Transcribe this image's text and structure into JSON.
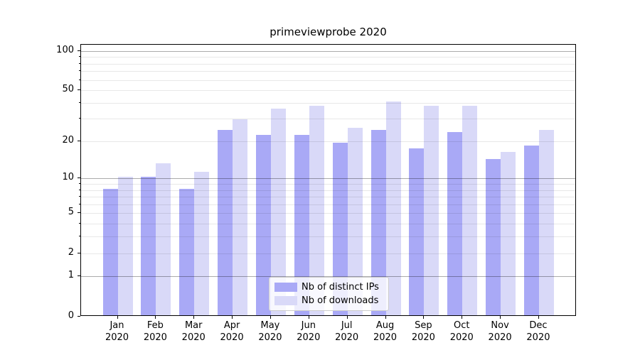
{
  "title": "primeviewprobe 2020",
  "legend": {
    "entries": [
      {
        "label": "Nb of distinct IPs",
        "color": "#a9a9f6"
      },
      {
        "label": "Nb of downloads",
        "color": "#d9d9f8"
      }
    ]
  },
  "chart_data": {
    "type": "bar",
    "title": "primeviewprobe 2020",
    "categories": [
      "Jan 2020",
      "Feb 2020",
      "Mar 2020",
      "Apr 2020",
      "May 2020",
      "Jun 2020",
      "Jul 2020",
      "Aug 2020",
      "Sep 2020",
      "Oct 2020",
      "Nov 2020",
      "Dec 2020"
    ],
    "x_tick_labels_line1": [
      "Jan",
      "Feb",
      "Mar",
      "Apr",
      "May",
      "Jun",
      "Jul",
      "Aug",
      "Sep",
      "Oct",
      "Nov",
      "Dec"
    ],
    "x_tick_labels_line2": [
      "2020",
      "2020",
      "2020",
      "2020",
      "2020",
      "2020",
      "2020",
      "2020",
      "2020",
      "2020",
      "2020",
      "2020"
    ],
    "series": [
      {
        "name": "Nb of distinct IPs",
        "color": "#a9a9f6",
        "values": [
          8,
          10,
          8,
          24,
          22,
          22,
          19,
          24,
          17,
          23,
          14,
          18
        ]
      },
      {
        "name": "Nb of downloads",
        "color": "#d9d9f8",
        "values": [
          10,
          13,
          11,
          29,
          35,
          37,
          25,
          40,
          37,
          37,
          16,
          24
        ]
      }
    ],
    "xlabel": "",
    "ylabel": "",
    "y_scale": "log1p",
    "ylim": [
      0,
      111
    ],
    "y_ticks": [
      0,
      1,
      2,
      5,
      10,
      20,
      50,
      100
    ],
    "y_major_gridlines": [
      1,
      10,
      100
    ],
    "y_minor_gridlines": [
      2,
      3,
      4,
      5,
      6,
      7,
      8,
      9,
      20,
      30,
      40,
      50,
      60,
      70,
      80,
      90
    ],
    "grid": true,
    "legend_position": "lower center"
  }
}
